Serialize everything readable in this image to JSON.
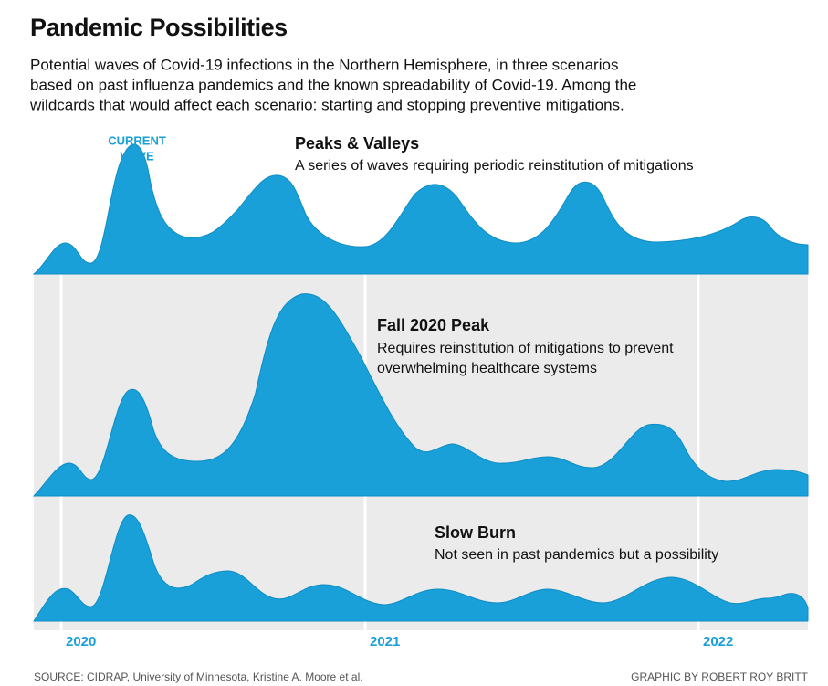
{
  "header": {
    "title": "Pandemic Possibilities",
    "subtitle": [
      "Potential waves of Covid-19 infections in the Northern Hemisphere, in three scenarios",
      "based on past influenza pandemics and the known spreadability of Covid-19. Among the",
      "wildcards that would affect each scenario: starting and stopping preventive mitigations."
    ]
  },
  "annotation": [
    "CURRENT",
    "WAVE"
  ],
  "panels": [
    {
      "title": "Peaks & Valleys",
      "description": [
        "A series of waves requiring periodic reinstitution of mitigations"
      ]
    },
    {
      "title": "Fall 2020 Peak",
      "description": [
        "Requires reinstitution of mitigations to prevent",
        "overwhelming healthcare systems"
      ]
    },
    {
      "title": "Slow Burn",
      "description": [
        "Not seen in past pandemics but a possibility"
      ]
    }
  ],
  "years": [
    "2020",
    "2021",
    "2022"
  ],
  "footer": {
    "source": "SOURCE: CIDRAP, University of Minnesota, Kristine A. Moore et al.",
    "credit": "GRAPHIC BY ROBERT ROY BRITT"
  }
}
